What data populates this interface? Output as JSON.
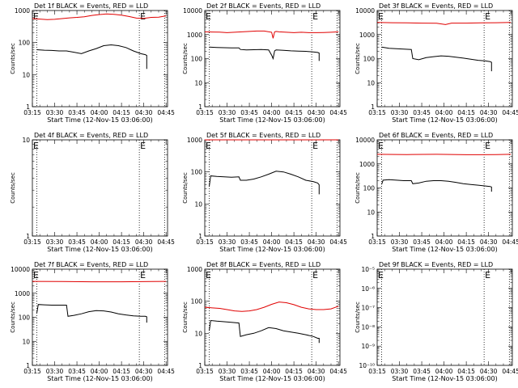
{
  "chart_data": [
    {
      "type": "line",
      "title": "Det 1f BLACK = Events, RED = LLD",
      "xlabel": "Start Time (12-Nov-15 03:06:00)",
      "ylabel": "Counts/sec",
      "x_ticks": [
        "03:15",
        "03:30",
        "03:45",
        "04:00",
        "04:15",
        "04:30",
        "04:45"
      ],
      "xlim": [
        9,
        100
      ],
      "y_scale": "log",
      "ylim": [
        1,
        1000
      ],
      "y_ticks": [
        "1",
        "10",
        "100",
        "1000"
      ],
      "vlines": [
        12,
        81,
        98
      ],
      "markers": [
        "E",
        "E"
      ],
      "marker_x": [
        9,
        81
      ],
      "series": [
        {
          "name": "RED",
          "color": "#e00000",
          "x": [
            9,
            14,
            19,
            24,
            29,
            34,
            39,
            44,
            49,
            54,
            59,
            64,
            69,
            74,
            79,
            84,
            89,
            94,
            99
          ],
          "y": [
            560,
            540,
            520,
            530,
            560,
            590,
            610,
            640,
            700,
            750,
            780,
            760,
            720,
            650,
            580,
            570,
            610,
            620,
            680
          ]
        },
        {
          "name": "BLACK",
          "color": "#000000",
          "x": [
            12,
            17,
            22,
            27,
            32,
            37,
            42,
            47,
            52,
            57,
            62,
            67,
            72,
            77,
            82,
            85,
            86,
            86
          ],
          "y": [
            60,
            58,
            57,
            55,
            55,
            50,
            45,
            55,
            65,
            80,
            85,
            80,
            70,
            55,
            45,
            42,
            40,
            15
          ]
        }
      ]
    },
    {
      "type": "line",
      "title": "Det 2f BLACK = Events, RED = LLD",
      "xlabel": "Start Time (12-Nov-15 03:06:00)",
      "ylabel": "Counts/sec",
      "x_ticks": [
        "03:15",
        "03:30",
        "03:45",
        "04:00",
        "04:15",
        "04:30",
        "04:45"
      ],
      "xlim": [
        9,
        100
      ],
      "y_scale": "log",
      "ylim": [
        1,
        10000
      ],
      "y_ticks": [
        "1",
        "10",
        "100",
        "1000",
        "10000"
      ],
      "vlines": [
        12,
        81,
        98
      ],
      "markers": [
        "E",
        "E"
      ],
      "marker_x": [
        9,
        81
      ],
      "series": [
        {
          "name": "RED",
          "color": "#e00000",
          "x": [
            9,
            14,
            19,
            24,
            29,
            34,
            39,
            44,
            49,
            54,
            55,
            56,
            57,
            59,
            64,
            69,
            74,
            79,
            84,
            89,
            94,
            99
          ],
          "y": [
            1300,
            1280,
            1260,
            1200,
            1250,
            1300,
            1350,
            1400,
            1400,
            1250,
            700,
            1300,
            1350,
            1300,
            1250,
            1200,
            1250,
            1200,
            1200,
            1220,
            1250,
            1300
          ]
        },
        {
          "name": "BLACK",
          "color": "#000000",
          "x": [
            12,
            17,
            22,
            27,
            32,
            33,
            37,
            42,
            47,
            52,
            54,
            55,
            56,
            57,
            62,
            67,
            72,
            77,
            82,
            85,
            86,
            86
          ],
          "y": [
            300,
            290,
            285,
            280,
            280,
            240,
            230,
            235,
            240,
            230,
            140,
            100,
            210,
            230,
            220,
            210,
            205,
            200,
            190,
            180,
            170,
            80
          ]
        }
      ]
    },
    {
      "type": "line",
      "title": "Det 3f BLACK = Events, RED = LLD",
      "xlabel": "Start Time (12-Nov-15 03:06:00)",
      "ylabel": "Counts/sec",
      "x_ticks": [
        "03:15",
        "03:30",
        "03:45",
        "04:00",
        "04:15",
        "04:30",
        "04:45"
      ],
      "xlim": [
        9,
        100
      ],
      "y_scale": "log",
      "ylim": [
        1,
        10000
      ],
      "y_ticks": [
        "1",
        "10",
        "100",
        "1000",
        "10000"
      ],
      "vlines": [
        12,
        81,
        98
      ],
      "markers": [
        "E",
        "E"
      ],
      "marker_x": [
        9,
        81
      ],
      "series": [
        {
          "name": "RED",
          "color": "#e00000",
          "x": [
            9,
            19,
            29,
            39,
            49,
            55,
            59,
            69,
            79,
            89,
            99
          ],
          "y": [
            3200,
            3100,
            3050,
            3000,
            2950,
            2600,
            3000,
            3000,
            3050,
            3100,
            3200
          ]
        },
        {
          "name": "BLACK",
          "color": "#000000",
          "x": [
            12,
            17,
            22,
            27,
            32,
            33,
            37,
            42,
            47,
            52,
            57,
            62,
            67,
            72,
            77,
            82,
            85,
            86,
            86
          ],
          "y": [
            300,
            270,
            260,
            250,
            240,
            100,
            90,
            110,
            120,
            130,
            125,
            115,
            105,
            95,
            85,
            80,
            75,
            70,
            30
          ]
        }
      ]
    },
    {
      "type": "line",
      "title": "Det 4f BLACK = Events, RED = LLD",
      "xlabel": "Start Time (12-Nov-15 03:06:00)",
      "ylabel": "Counts/sec",
      "x_ticks": [
        "03:15",
        "03:30",
        "03:45",
        "04:00",
        "04:15",
        "04:30",
        "04:45"
      ],
      "xlim": [
        9,
        100
      ],
      "y_scale": "log",
      "ylim": [
        1,
        10
      ],
      "y_ticks": [
        "1",
        "10"
      ],
      "vlines": [
        12,
        81,
        98
      ],
      "markers": [
        "E",
        "E"
      ],
      "marker_x": [
        9,
        81
      ],
      "series": []
    },
    {
      "type": "line",
      "title": "Det 5f BLACK = Events, RED = LLD",
      "xlabel": "Start Time (12-Nov-15 03:06:00)",
      "ylabel": "Counts/sec",
      "x_ticks": [
        "03:15",
        "03:30",
        "03:45",
        "04:00",
        "04:15",
        "04:30",
        "04:45"
      ],
      "xlim": [
        9,
        100
      ],
      "y_scale": "log",
      "ylim": [
        1,
        1000
      ],
      "y_ticks": [
        "1",
        "10",
        "100",
        "1000"
      ],
      "vlines": [
        12,
        81,
        98
      ],
      "markers": [
        "E",
        "E"
      ],
      "marker_x": [
        9,
        81
      ],
      "series": [
        {
          "name": "RED",
          "color": "#e00000",
          "x": [
            9,
            99
          ],
          "y": [
            1000,
            1000
          ]
        },
        {
          "name": "BLACK",
          "color": "#000000",
          "x": [
            12,
            13,
            17,
            22,
            27,
            32,
            33,
            37,
            42,
            47,
            52,
            57,
            62,
            67,
            72,
            77,
            82,
            85,
            86,
            86
          ],
          "y": [
            35,
            75,
            72,
            70,
            68,
            70,
            55,
            55,
            60,
            70,
            85,
            105,
            100,
            85,
            70,
            55,
            50,
            45,
            40,
            20
          ]
        }
      ]
    },
    {
      "type": "line",
      "title": "Det 6f BLACK = Events, RED = LLD",
      "xlabel": "Start Time (12-Nov-15 03:06:00)",
      "ylabel": "Counts/sec",
      "x_ticks": [
        "03:15",
        "03:30",
        "03:45",
        "04:00",
        "04:15",
        "04:30",
        "04:45"
      ],
      "xlim": [
        9,
        100
      ],
      "y_scale": "log",
      "ylim": [
        1,
        10000
      ],
      "y_ticks": [
        "1",
        "10",
        "100",
        "1000",
        "10000"
      ],
      "vlines": [
        12,
        81,
        98
      ],
      "markers": [
        "E",
        "E"
      ],
      "marker_x": [
        9,
        81
      ],
      "series": [
        {
          "name": "RED",
          "color": "#e00000",
          "x": [
            9,
            29,
            49,
            69,
            79,
            89,
            99
          ],
          "y": [
            2500,
            2450,
            2500,
            2400,
            2400,
            2450,
            2500
          ]
        },
        {
          "name": "BLACK",
          "color": "#000000",
          "x": [
            12,
            13,
            17,
            22,
            27,
            32,
            33,
            37,
            42,
            47,
            52,
            57,
            62,
            67,
            72,
            77,
            82,
            85,
            86,
            86
          ],
          "y": [
            140,
            210,
            220,
            210,
            200,
            200,
            150,
            160,
            190,
            200,
            200,
            190,
            170,
            150,
            140,
            130,
            120,
            115,
            110,
            70
          ]
        }
      ]
    },
    {
      "type": "line",
      "title": "Det 7f BLACK = Events, RED = LLD",
      "xlabel": "Start Time (12-Nov-15 03:06:00)",
      "ylabel": "Counts/sec",
      "x_ticks": [
        "03:15",
        "03:30",
        "03:45",
        "04:00",
        "04:15",
        "04:30",
        "04:45"
      ],
      "xlim": [
        9,
        100
      ],
      "y_scale": "log",
      "ylim": [
        1,
        10000
      ],
      "y_ticks": [
        "1",
        "10",
        "100",
        "1000",
        "10000"
      ],
      "vlines": [
        12,
        81,
        98
      ],
      "markers": [
        "E",
        "E"
      ],
      "marker_x": [
        9,
        81
      ],
      "series": [
        {
          "name": "RED",
          "color": "#e00000",
          "x": [
            9,
            29,
            49,
            69,
            89,
            99
          ],
          "y": [
            3100,
            3050,
            3000,
            3000,
            3050,
            3100
          ]
        },
        {
          "name": "BLACK",
          "color": "#000000",
          "x": [
            12,
            13,
            17,
            22,
            27,
            32,
            33,
            37,
            42,
            47,
            52,
            57,
            62,
            67,
            72,
            77,
            82,
            85,
            86,
            86
          ],
          "y": [
            150,
            340,
            330,
            320,
            320,
            320,
            110,
            120,
            140,
            170,
            190,
            185,
            165,
            140,
            125,
            115,
            110,
            110,
            105,
            60
          ]
        }
      ]
    },
    {
      "type": "line",
      "title": "Det 8f BLACK = Events, RED = LLD",
      "xlabel": "Start Time (12-Nov-15 03:06:00)",
      "ylabel": "Counts/sec",
      "x_ticks": [
        "03:15",
        "03:30",
        "03:45",
        "04:00",
        "04:15",
        "04:30",
        "04:45"
      ],
      "xlim": [
        9,
        100
      ],
      "y_scale": "log",
      "ylim": [
        1,
        1000
      ],
      "y_ticks": [
        "1",
        "10",
        "100",
        "1000"
      ],
      "vlines": [
        12,
        81,
        98
      ],
      "markers": [
        "E",
        "E"
      ],
      "marker_x": [
        9,
        81
      ],
      "series": [
        {
          "name": "RED",
          "color": "#e00000",
          "x": [
            9,
            14,
            19,
            24,
            29,
            34,
            39,
            44,
            49,
            54,
            59,
            64,
            69,
            74,
            79,
            84,
            89,
            94,
            99
          ],
          "y": [
            65,
            62,
            60,
            55,
            50,
            48,
            50,
            55,
            65,
            80,
            95,
            90,
            78,
            65,
            58,
            55,
            55,
            58,
            70
          ]
        },
        {
          "name": "BLACK",
          "color": "#000000",
          "x": [
            12,
            13,
            17,
            22,
            27,
            32,
            33,
            37,
            42,
            47,
            52,
            57,
            62,
            67,
            72,
            77,
            82,
            85,
            86,
            86
          ],
          "y": [
            12,
            25,
            24,
            23,
            22,
            21,
            8,
            9,
            10,
            12,
            15,
            14,
            12,
            11,
            10,
            9,
            8,
            7,
            7,
            5
          ]
        }
      ]
    },
    {
      "type": "line",
      "title": "Det 9f BLACK = Events, RED = LLD",
      "xlabel": "Start Time (12-Nov-15 03:06:00)",
      "ylabel": "Counts/sec",
      "x_ticks": [
        "03:15",
        "03:30",
        "03:45",
        "04:00",
        "04:15",
        "04:30",
        "04:45"
      ],
      "xlim": [
        9,
        100
      ],
      "y_scale": "log",
      "ylim": [
        1e-10,
        1e-05
      ],
      "y_ticks": [
        "10⁻¹⁰",
        "10⁻⁹",
        "10⁻⁸",
        "10⁻⁷",
        "10⁻⁶",
        "10⁻⁵"
      ],
      "vlines": [
        12,
        81,
        98
      ],
      "markers": [
        "E",
        "E"
      ],
      "marker_x": [
        9,
        81
      ],
      "series": []
    }
  ]
}
